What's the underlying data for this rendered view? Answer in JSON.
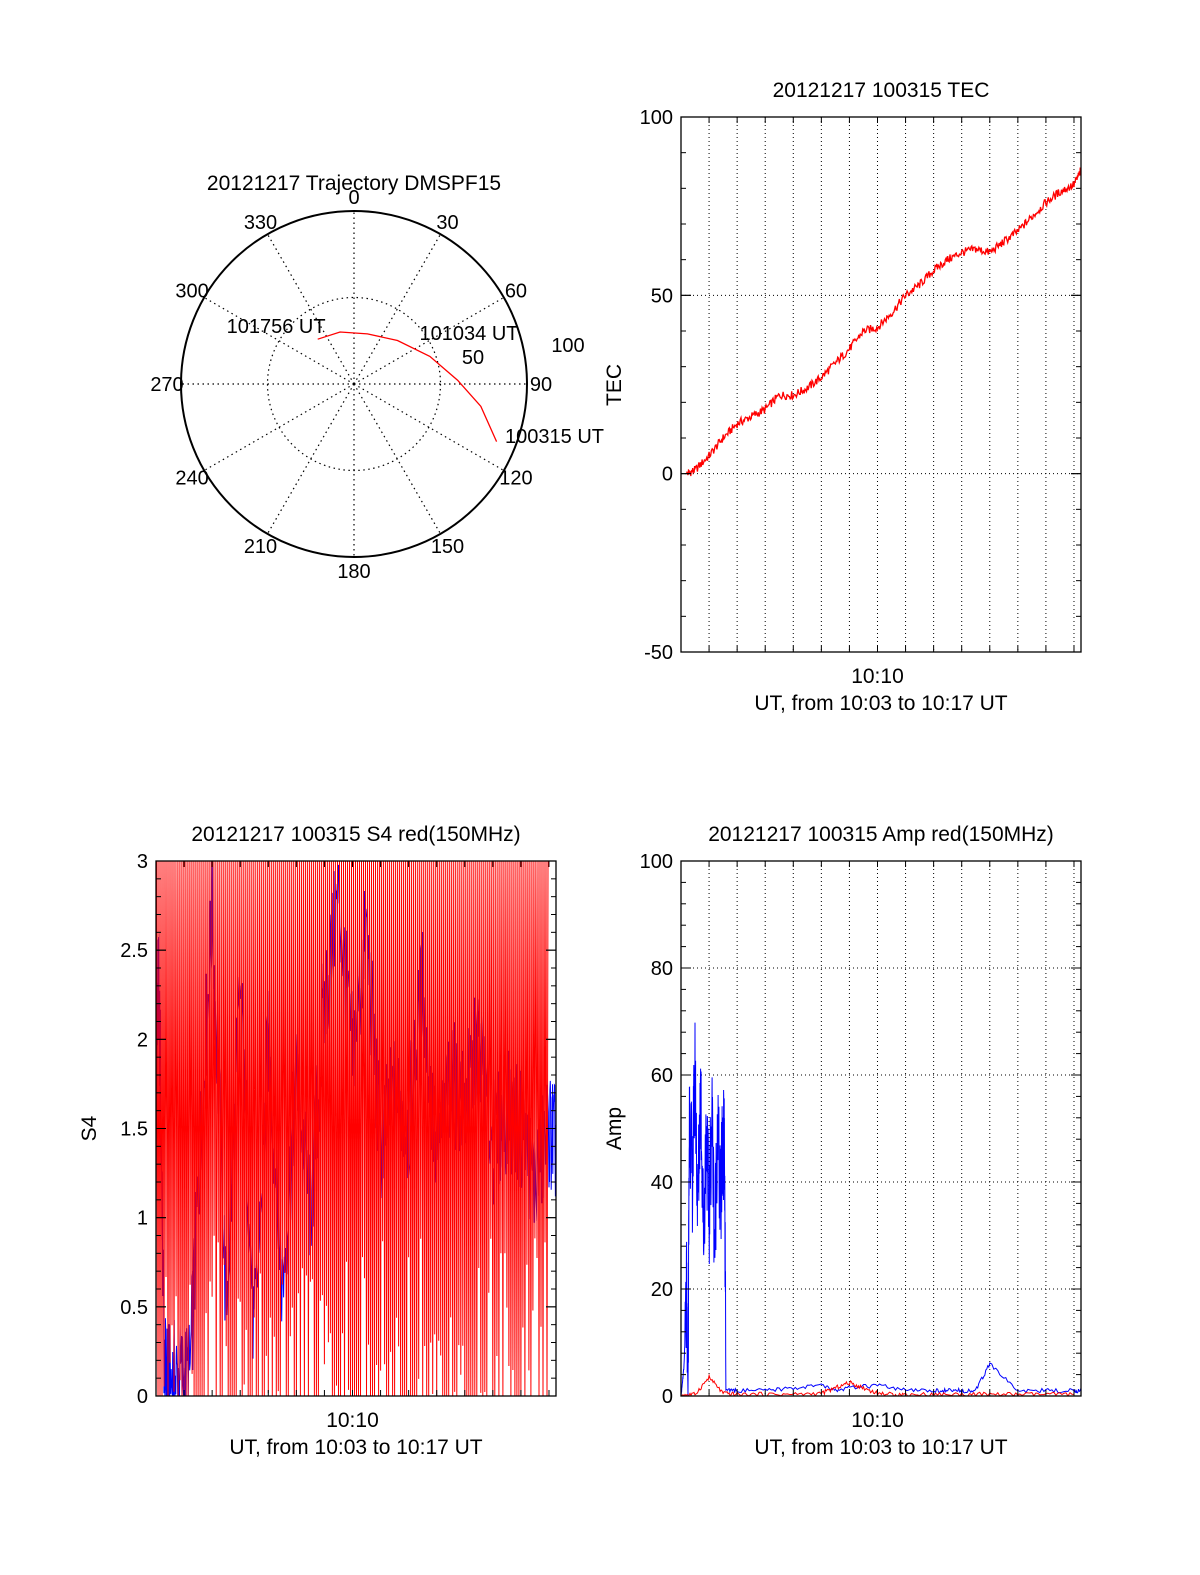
{
  "chart_data": [
    {
      "type": "polar",
      "title": "20121217 Trajectory DMSPF15",
      "angle_labels": [
        "0",
        "30",
        "60",
        "90",
        "120",
        "150",
        "180",
        "210",
        "240",
        "270",
        "300",
        "330"
      ],
      "radial_labels": [
        "50",
        "100"
      ],
      "series": [
        {
          "color": "#ff0000",
          "points": [
            {
              "azimuth": 112,
              "elevation": 10
            },
            {
              "azimuth": 100,
              "elevation": 23
            },
            {
              "azimuth": 88,
              "elevation": 36
            },
            {
              "azimuth": 70,
              "elevation": 48
            },
            {
              "azimuth": 45,
              "elevation": 58
            },
            {
              "azimuth": 15,
              "elevation": 63
            },
            {
              "azimuth": -15,
              "elevation": 62
            },
            {
              "azimuth": -39,
              "elevation": 60
            }
          ]
        }
      ],
      "annotations": [
        {
          "text": "101756 UT",
          "azimuth": -21,
          "elevation": 56
        },
        {
          "text": "101034 UT",
          "azimuth": 54,
          "elevation": 44
        },
        {
          "text": "100315 UT",
          "azimuth": 107,
          "elevation": 10
        }
      ]
    },
    {
      "type": "line",
      "title": "20121217 100315 TEC",
      "xlabel": "UT, from 10:03 to 10:17 UT",
      "ylabel": "TEC",
      "xlim": [
        3,
        17.25
      ],
      "ylim": [
        -50,
        100
      ],
      "x_unit": "minutes after 10:00 UT",
      "xticks": [
        {
          "value": 10,
          "label": "10:10"
        }
      ],
      "yticks": [
        -50,
        0,
        50,
        100
      ],
      "grid": true,
      "series": [
        {
          "color": "#ff0000",
          "x": [
            3.2,
            3.5,
            4.0,
            4.5,
            5.0,
            5.5,
            6.0,
            6.5,
            7.0,
            7.5,
            8.0,
            8.5,
            9.0,
            9.5,
            10.0,
            10.5,
            11.0,
            11.5,
            12.0,
            12.5,
            13.0,
            13.5,
            14.0,
            14.5,
            15.0,
            15.5,
            16.0,
            16.5,
            17.0,
            17.25
          ],
          "y": [
            0,
            1,
            5,
            10,
            14,
            16,
            18,
            22,
            22,
            24,
            27,
            31,
            35,
            40,
            41,
            45,
            50,
            53,
            57,
            60,
            62,
            63,
            62,
            65,
            68,
            72,
            76,
            79,
            81,
            85
          ]
        }
      ]
    },
    {
      "type": "line",
      "title": "20121217 100315 S4 red(150MHz)",
      "xlabel": "UT, from 10:03 to 10:17 UT",
      "ylabel": "S4",
      "xlim": [
        3,
        17.25
      ],
      "ylim": [
        0,
        3
      ],
      "x_unit": "minutes after 10:00 UT",
      "xticks": [
        {
          "value": 10,
          "label": "10:10"
        }
      ],
      "yticks": [
        "0",
        "0.5",
        "1",
        "1.5",
        "2",
        "2.5",
        "3"
      ],
      "grid": false,
      "series": [
        {
          "color": "#0000ff",
          "x": [
            3.0,
            3.1,
            3.3,
            3.5,
            3.8,
            4.2,
            4.6,
            5.0,
            5.5,
            6.0,
            6.5,
            7.0,
            7.5,
            8.0,
            8.5,
            9.0,
            9.5,
            10.0,
            10.5,
            11.0,
            11.5,
            12.0,
            12.5,
            13.0,
            13.5,
            14.0,
            14.5,
            15.0,
            15.5,
            16.0,
            16.5,
            17.0,
            17.25
          ],
          "y": [
            1.6,
            2.4,
            0.1,
            0.08,
            0.1,
            0.09,
            1.5,
            2.7,
            0.5,
            2.3,
            0.3,
            2.0,
            0.6,
            1.8,
            1.0,
            2.2,
            2.8,
            1.9,
            2.6,
            1.4,
            1.7,
            1.5,
            2.3,
            1.3,
            1.8,
            1.6,
            2.0,
            1.4,
            1.6,
            1.5,
            1.2,
            1.5,
            1.4
          ]
        },
        {
          "color": "#ff0000",
          "x": [
            3.0,
            3.5,
            4.0,
            4.5,
            5.0,
            5.5,
            6.0,
            6.5,
            7.0,
            7.5,
            8.0,
            8.5,
            9.0,
            9.5,
            10.0,
            10.5,
            11.0,
            11.5,
            12.0,
            12.5,
            13.0,
            13.5,
            14.0,
            14.5,
            15.0,
            15.5,
            16.0,
            16.5,
            17.0
          ],
          "y": [
            3,
            0,
            3,
            0,
            3,
            0,
            3,
            0.8,
            3,
            0.5,
            3,
            0,
            3,
            0,
            3,
            0,
            3,
            0,
            3,
            0,
            3,
            0,
            3,
            0,
            3,
            0,
            3,
            0,
            3
          ]
        }
      ]
    },
    {
      "type": "line",
      "title": "20121217 100315 Amp red(150MHz)",
      "xlabel": "UT, from 10:03 to 10:17 UT",
      "ylabel": "Amp",
      "xlim": [
        3,
        17.25
      ],
      "ylim": [
        0,
        100
      ],
      "x_unit": "minutes after 10:00 UT",
      "xticks": [
        {
          "value": 10,
          "label": "10:10"
        }
      ],
      "yticks": [
        0,
        20,
        40,
        60,
        80,
        100
      ],
      "grid": true,
      "series": [
        {
          "color": "#0000ff",
          "x": [
            3.0,
            3.1,
            3.2,
            3.25,
            3.3,
            3.4,
            3.5,
            3.6,
            3.7,
            3.8,
            3.9,
            4.0,
            4.1,
            4.2,
            4.3,
            4.4,
            4.5,
            4.55,
            4.6,
            5.0,
            6.0,
            7.0,
            8.0,
            8.5,
            9.0,
            10.0,
            11.0,
            12.0,
            12.5,
            13.0,
            13.5,
            14.0,
            15.0,
            16.0,
            17.0,
            17.25
          ],
          "y": [
            0,
            5,
            18,
            0,
            55,
            40,
            60,
            35,
            58,
            30,
            50,
            33,
            54,
            28,
            52,
            35,
            48,
            45,
            1,
            1,
            1,
            1.5,
            2,
            1,
            1.5,
            2,
            1,
            1,
            1,
            1,
            1,
            6,
            1,
            1,
            1,
            1
          ]
        },
        {
          "color": "#ff0000",
          "x": [
            3.0,
            3.5,
            4.0,
            4.5,
            5.0,
            6.0,
            7.0,
            8.0,
            8.5,
            9.0,
            9.5,
            10.0,
            10.5,
            11.0,
            12.0,
            13.0,
            14.0,
            15.0,
            16.0,
            17.0
          ],
          "y": [
            0.2,
            0.3,
            3.5,
            0.5,
            0.3,
            0.3,
            0.3,
            0.5,
            1.5,
            2.5,
            1.5,
            0.5,
            0.3,
            0.3,
            0.3,
            0.3,
            0.3,
            0.3,
            0.3,
            0.3
          ]
        }
      ]
    }
  ]
}
